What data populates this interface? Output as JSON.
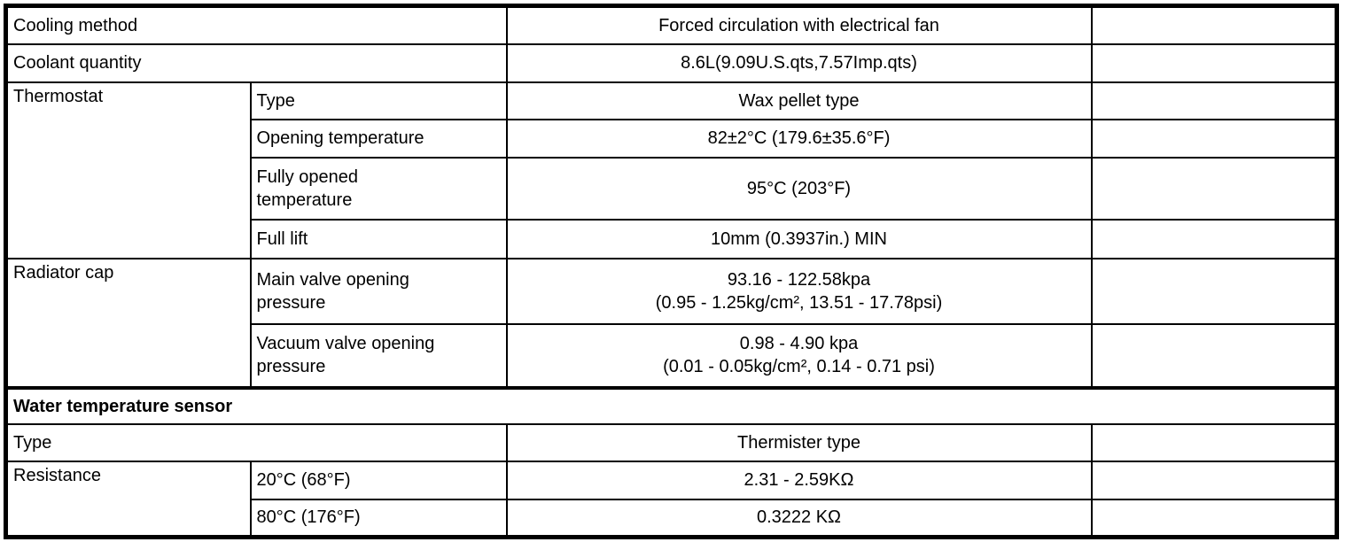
{
  "colors": {
    "background": "#ffffff",
    "border": "#000000",
    "text": "#000000"
  },
  "spec": {
    "cooling_method": {
      "label": "Cooling method",
      "value": "Forced circulation with electrical fan"
    },
    "coolant_quantity": {
      "label": "Coolant quantity",
      "value": "8.6L(9.09U.S.qts,7.57Imp.qts)"
    },
    "thermostat": {
      "label": "Thermostat",
      "rows": [
        {
          "label": "Type",
          "value": "Wax pellet type"
        },
        {
          "label": "Opening temperature",
          "value": "82±2°C (179.6±35.6°F)"
        },
        {
          "label": "Fully opened temperature",
          "value": "95°C (203°F)"
        },
        {
          "label": "Full lift",
          "value": "10mm (0.3937in.) MIN"
        }
      ]
    },
    "radiator_cap": {
      "label": "Radiator cap",
      "rows": [
        {
          "label": "Main valve opening pressure",
          "value": "93.16 - 122.58kpa\n(0.95 - 1.25kg/cm², 13.51 - 17.78psi)"
        },
        {
          "label": "Vacuum valve opening pressure",
          "value": "0.98 - 4.90 kpa\n(0.01 - 0.05kg/cm², 0.14 - 0.71 psi)"
        }
      ]
    },
    "water_temperature_sensor": {
      "section_title": "Water temperature sensor"
    },
    "sensor_type": {
      "label": "Type",
      "value": "Thermister type"
    },
    "resistance": {
      "label": "Resistance",
      "rows": [
        {
          "label": "20°C (68°F)",
          "value": "2.31 - 2.59KΩ"
        },
        {
          "label": "80°C (176°F)",
          "value": "0.3222 KΩ"
        }
      ]
    }
  }
}
